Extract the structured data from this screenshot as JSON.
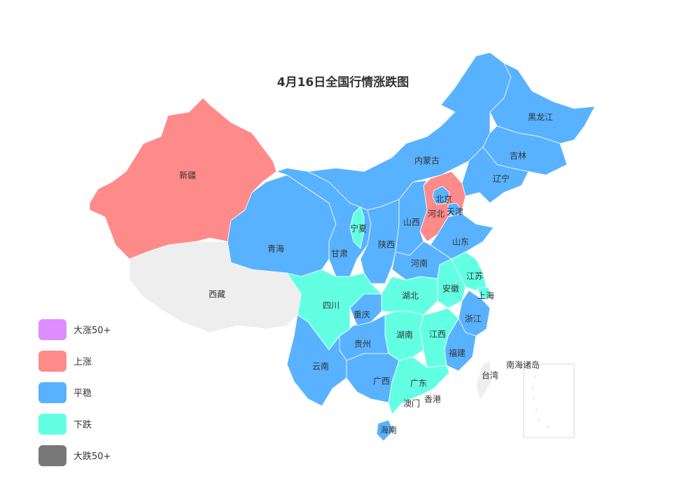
{
  "title": "4月16日全国行情涨跌图",
  "legend": [
    {
      "key": "up50",
      "label": "大涨50+",
      "color": "#dd8dff"
    },
    {
      "key": "up",
      "label": "上涨",
      "color": "#ff8a8a"
    },
    {
      "key": "flat",
      "label": "平稳",
      "color": "#58b2ff"
    },
    {
      "key": "down",
      "label": "下跌",
      "color": "#63ffe3"
    },
    {
      "key": "down50",
      "label": "大跌50+",
      "color": "#787878"
    }
  ],
  "no_data_color": "#eeeeee",
  "provinces": {
    "xinjiang": {
      "name": "新疆",
      "status": "up"
    },
    "xizang": {
      "name": "西藏",
      "status": "none"
    },
    "qinghai": {
      "name": "青海",
      "status": "flat"
    },
    "gansu": {
      "name": "甘肃",
      "status": "flat"
    },
    "neimenggu": {
      "name": "内蒙古",
      "status": "flat"
    },
    "heilongjiang": {
      "name": "黑龙江",
      "status": "flat"
    },
    "jilin": {
      "name": "吉林",
      "status": "flat"
    },
    "liaoning": {
      "name": "辽宁",
      "status": "flat"
    },
    "hebei": {
      "name": "河北",
      "status": "up"
    },
    "beijing": {
      "name": "北京",
      "status": "flat"
    },
    "tianjin": {
      "name": "天津",
      "status": "flat"
    },
    "shanxi": {
      "name": "山西",
      "status": "flat"
    },
    "shaanxi": {
      "name": "陕西",
      "status": "flat"
    },
    "ningxia": {
      "name": "宁夏",
      "status": "down"
    },
    "shandong": {
      "name": "山东",
      "status": "flat"
    },
    "henan": {
      "name": "河南",
      "status": "flat"
    },
    "jiangsu": {
      "name": "江苏",
      "status": "down"
    },
    "shanghai": {
      "name": "上海",
      "status": "down"
    },
    "anhui": {
      "name": "安徽",
      "status": "down"
    },
    "zhejiang": {
      "name": "浙江",
      "status": "flat"
    },
    "fujian": {
      "name": "福建",
      "status": "flat"
    },
    "jiangxi": {
      "name": "江西",
      "status": "down"
    },
    "hubei": {
      "name": "湖北",
      "status": "down"
    },
    "hunan": {
      "name": "湖南",
      "status": "down"
    },
    "guangdong": {
      "name": "广东",
      "status": "down"
    },
    "guangxi": {
      "name": "广西",
      "status": "flat"
    },
    "hainan": {
      "name": "海南",
      "status": "flat"
    },
    "guizhou": {
      "name": "贵州",
      "status": "flat"
    },
    "chongqing": {
      "name": "重庆",
      "status": "flat"
    },
    "sichuan": {
      "name": "四川",
      "status": "down"
    },
    "yunnan": {
      "name": "云南",
      "status": "flat"
    },
    "taiwan": {
      "name": "台湾",
      "status": "none"
    },
    "xianggang": {
      "name": "香港",
      "status": "none"
    },
    "aomen": {
      "name": "澳门",
      "status": "none"
    },
    "nanhai": {
      "name": "南海诸岛",
      "status": "none"
    }
  }
}
